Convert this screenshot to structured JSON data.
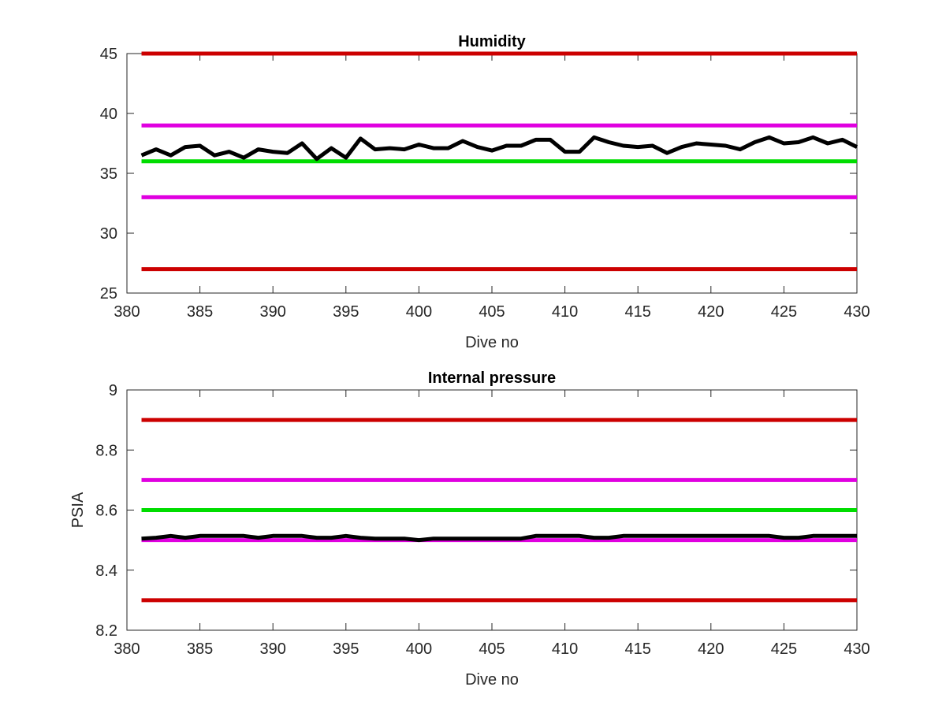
{
  "chart_data": [
    {
      "type": "line",
      "title": "Humidity",
      "xlabel": "Dive no",
      "ylabel": "",
      "xlim": [
        380,
        430
      ],
      "ylim": [
        25,
        45
      ],
      "xticks": [
        "380",
        "385",
        "390",
        "395",
        "400",
        "405",
        "410",
        "415",
        "420",
        "425",
        "430"
      ],
      "yticks": [
        "25",
        "30",
        "35",
        "40",
        "45"
      ],
      "grid": false,
      "series": [
        {
          "color": "#000000",
          "x": [
            381,
            382,
            383,
            384,
            385,
            386,
            387,
            388,
            389,
            390,
            391,
            392,
            393,
            394,
            395,
            396,
            397,
            398,
            399,
            400,
            401,
            402,
            403,
            404,
            405,
            406,
            407,
            408,
            409,
            410,
            411,
            412,
            413,
            414,
            415,
            416,
            417,
            418,
            419,
            420,
            421,
            422,
            423,
            424,
            425,
            426,
            427,
            428,
            429,
            430
          ],
          "y": [
            36.5,
            37.0,
            36.5,
            37.2,
            37.3,
            36.5,
            36.8,
            36.3,
            37.0,
            36.8,
            36.7,
            37.5,
            36.2,
            37.1,
            36.3,
            37.9,
            37.0,
            37.1,
            37.0,
            37.4,
            37.1,
            37.1,
            37.7,
            37.2,
            36.9,
            37.3,
            37.3,
            37.8,
            37.8,
            36.8,
            36.8,
            38.0,
            37.6,
            37.3,
            37.2,
            37.3,
            36.7,
            37.2,
            37.5,
            37.4,
            37.3,
            37.0,
            37.6,
            38.0,
            37.5,
            37.6,
            38.0,
            37.5,
            37.8,
            37.2
          ]
        }
      ],
      "hlines": [
        {
          "y": 45,
          "color": "#cc0000"
        },
        {
          "y": 39,
          "color": "#e000e0"
        },
        {
          "y": 36,
          "color": "#00dd00"
        },
        {
          "y": 33,
          "color": "#e000e0"
        },
        {
          "y": 27,
          "color": "#cc0000"
        }
      ],
      "hline_x": [
        381,
        430
      ]
    },
    {
      "type": "line",
      "title": "Internal pressure",
      "xlabel": "Dive no",
      "ylabel": "PSIA",
      "xlim": [
        380,
        430
      ],
      "ylim": [
        8.2,
        9
      ],
      "xticks": [
        "380",
        "385",
        "390",
        "395",
        "400",
        "405",
        "410",
        "415",
        "420",
        "425",
        "430"
      ],
      "yticks": [
        "8.2",
        "8.4",
        "8.6",
        "8.8",
        "9"
      ],
      "grid": false,
      "series": [
        {
          "color": "#000000",
          "x": [
            381,
            382,
            383,
            384,
            385,
            386,
            387,
            388,
            389,
            390,
            391,
            392,
            393,
            394,
            395,
            396,
            397,
            398,
            399,
            400,
            401,
            402,
            403,
            404,
            405,
            406,
            407,
            408,
            409,
            410,
            411,
            412,
            413,
            414,
            415,
            416,
            417,
            418,
            419,
            420,
            421,
            422,
            423,
            424,
            425,
            426,
            427,
            428,
            429,
            430
          ],
          "y": [
            8.505,
            8.508,
            8.514,
            8.508,
            8.514,
            8.514,
            8.514,
            8.514,
            8.508,
            8.514,
            8.514,
            8.514,
            8.508,
            8.508,
            8.514,
            8.508,
            8.505,
            8.505,
            8.505,
            8.5,
            8.505,
            8.505,
            8.505,
            8.505,
            8.505,
            8.505,
            8.505,
            8.514,
            8.514,
            8.514,
            8.514,
            8.508,
            8.508,
            8.514,
            8.514,
            8.514,
            8.514,
            8.514,
            8.514,
            8.514,
            8.514,
            8.514,
            8.514,
            8.514,
            8.508,
            8.508,
            8.514,
            8.514,
            8.514,
            8.514
          ]
        }
      ],
      "hlines": [
        {
          "y": 8.9,
          "color": "#cc0000"
        },
        {
          "y": 8.7,
          "color": "#e000e0"
        },
        {
          "y": 8.6,
          "color": "#00dd00"
        },
        {
          "y": 8.5,
          "color": "#e000e0"
        },
        {
          "y": 8.3,
          "color": "#cc0000"
        }
      ],
      "hline_x": [
        381,
        430
      ]
    }
  ]
}
